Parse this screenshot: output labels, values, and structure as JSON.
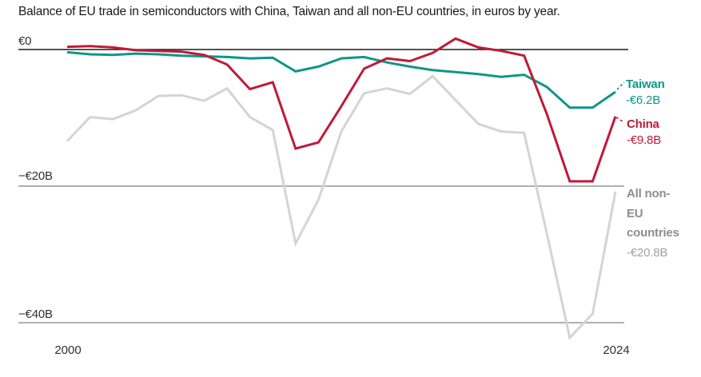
{
  "title": "Balance of EU trade in semiconductors with China, Taiwan and all non-EU countries, in euros by year.",
  "colors": {
    "taiwan": "#0f968a",
    "china": "#bf1a38",
    "non_eu_line": "#d4d4d4",
    "non_eu_label": "#8d8d8d",
    "non_eu_value": "#a2a2a2",
    "zero_axis": "#1a1a1a",
    "gridline": "#b0b0b0",
    "title_text": "#191919",
    "tick_text": "#2f2f2f"
  },
  "axes": {
    "y_ticks": [
      {
        "label": "€0",
        "value": 0
      },
      {
        "label": "−€20B",
        "value": -20
      },
      {
        "label": "−€40B",
        "value": -40
      }
    ],
    "x_ticks": [
      {
        "label": "2000",
        "year": 2000
      },
      {
        "label": "2024",
        "year": 2024
      }
    ]
  },
  "annotations": {
    "taiwan": {
      "label": "Taiwan",
      "value": "-€6.2B"
    },
    "china": {
      "label": "China",
      "value": "-€9.8B"
    },
    "non_eu": {
      "label": "All non-\nEU\ncountries",
      "value": "-€20.8B"
    }
  },
  "chart_data": {
    "type": "line",
    "title": "Balance of EU trade in semiconductors with China, Taiwan and all non-EU countries, in euros by year.",
    "unit": "billion EUR",
    "xlim": [
      2000,
      2024
    ],
    "ylim": [
      -45,
      3
    ],
    "grid": "horizontal",
    "legend": "end-of-line labels",
    "x": [
      2000,
      2001,
      2002,
      2003,
      2004,
      2005,
      2006,
      2007,
      2008,
      2009,
      2010,
      2011,
      2012,
      2013,
      2014,
      2015,
      2016,
      2017,
      2018,
      2019,
      2020,
      2021,
      2022,
      2023,
      2024
    ],
    "series": [
      {
        "key": "noneu",
        "name": "All non-EU countries",
        "color": "#d4d4d4",
        "end_label": "-€20.8B",
        "values": [
          -13.4,
          -9.9,
          -10.2,
          -8.9,
          -6.8,
          -6.7,
          -7.5,
          -5.7,
          -9.9,
          -11.8,
          -28.4,
          -22.0,
          -12.0,
          -6.4,
          -5.7,
          -6.5,
          -3.9,
          -7.4,
          -10.9,
          -12.0,
          -12.2,
          -27.0,
          -42.2,
          -38.7,
          -20.8
        ]
      },
      {
        "key": "taiwan",
        "name": "Taiwan",
        "color": "#0f968a",
        "end_label": "-€6.2B",
        "values": [
          -0.4,
          -0.7,
          -0.8,
          -0.6,
          -0.7,
          -0.9,
          -1.0,
          -1.1,
          -1.3,
          -1.2,
          -3.2,
          -2.5,
          -1.3,
          -1.1,
          -1.9,
          -2.5,
          -3.0,
          -3.3,
          -3.6,
          -4.0,
          -3.7,
          -5.5,
          -8.5,
          -8.5,
          -6.2
        ]
      },
      {
        "key": "china",
        "name": "China",
        "color": "#bf1a38",
        "end_label": "-€9.8B",
        "values": [
          0.4,
          0.5,
          0.3,
          -0.1,
          -0.2,
          -0.3,
          -0.8,
          -2.2,
          -5.8,
          -4.8,
          -14.5,
          -13.6,
          -8.3,
          -2.8,
          -1.3,
          -1.7,
          -0.5,
          1.6,
          0.3,
          -0.2,
          -0.9,
          -9.5,
          -19.3,
          -19.3,
          -9.8
        ]
      }
    ]
  }
}
